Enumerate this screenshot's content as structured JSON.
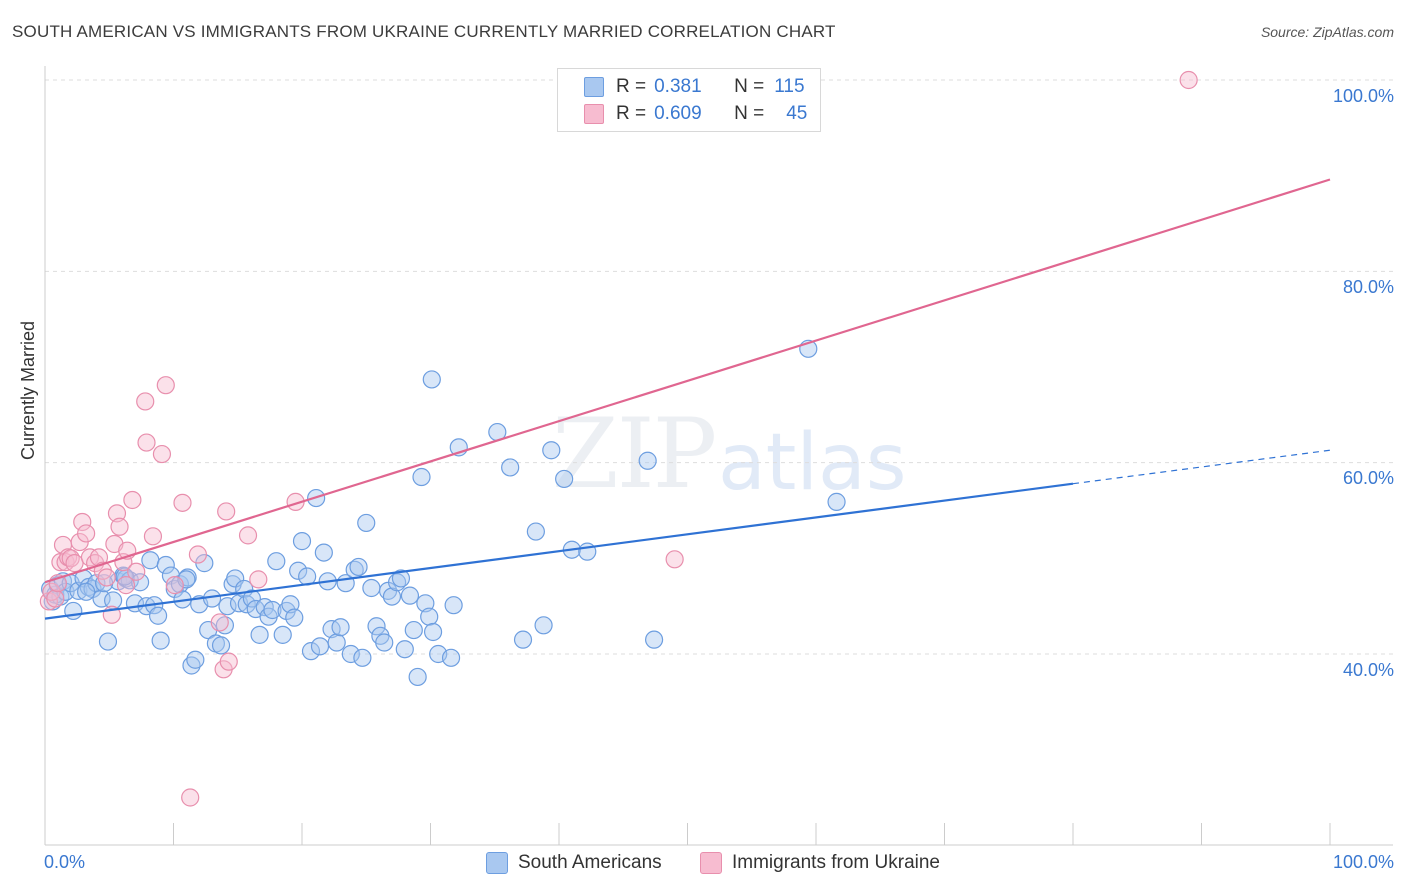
{
  "header": {
    "title": "SOUTH AMERICAN VS IMMIGRANTS FROM UKRAINE CURRENTLY MARRIED CORRELATION CHART",
    "source": "Source: ZipAtlas.com"
  },
  "watermark": {
    "part1": "ZIP",
    "part2": "atlas"
  },
  "colors": {
    "blue_fill": "#a9c8f0",
    "blue_stroke": "#6d9ee0",
    "blue_line": "#2f72d4",
    "pink_fill": "#f7bcd0",
    "pink_stroke": "#e88fad",
    "pink_line": "#e06690",
    "grid": "#dddddd",
    "axis_text": "#3a78d0"
  },
  "legend_top": {
    "rows": [
      {
        "r_label": "R =",
        "r_value": "0.381",
        "n_label": "N =",
        "n_value": "115"
      },
      {
        "r_label": "R =",
        "r_value": "0.609",
        "n_label": "N =",
        "n_value": "45"
      }
    ]
  },
  "legend_bottom": {
    "series1": "South Americans",
    "series2": "Immigrants from Ukraine"
  },
  "axes": {
    "x_min_label": "0.0%",
    "x_max_label": "100.0%",
    "y_label": "Currently Married",
    "y_ticks": [
      "40.0%",
      "60.0%",
      "80.0%",
      "100.0%"
    ]
  },
  "chart_data": {
    "type": "scatter",
    "title": "SOUTH AMERICAN VS IMMIGRANTS FROM UKRAINE CURRENTLY MARRIED CORRELATION CHART",
    "xlabel": "",
    "ylabel": "Currently Married",
    "xlim": [
      0,
      100
    ],
    "ylim": [
      20,
      100
    ],
    "y_ticks": [
      40,
      60,
      80,
      100
    ],
    "grid": true,
    "legend": "bottom-center",
    "series": [
      {
        "name": "South Americans",
        "R": 0.381,
        "N": 115,
        "trend": {
          "x0": 0,
          "y0": 43.7,
          "x1": 80,
          "y1": 57.8,
          "dashed_to_x": 100,
          "dashed_to_y": 61.3
        },
        "points": [
          [
            0.4,
            46.8
          ],
          [
            0.6,
            45.5
          ],
          [
            0.8,
            46.2
          ],
          [
            1.0,
            47.2
          ],
          [
            1.2,
            46.0
          ],
          [
            1.4,
            47.6
          ],
          [
            1.6,
            46.5
          ],
          [
            2.0,
            47.4
          ],
          [
            2.2,
            44.5
          ],
          [
            2.6,
            46.6
          ],
          [
            3.0,
            47.9
          ],
          [
            3.4,
            47.0
          ],
          [
            3.7,
            46.8
          ],
          [
            4.0,
            47.4
          ],
          [
            4.4,
            45.8
          ],
          [
            4.9,
            41.3
          ],
          [
            5.3,
            45.6
          ],
          [
            5.7,
            47.6
          ],
          [
            6.1,
            48.2
          ],
          [
            6.3,
            47.9
          ],
          [
            6.6,
            47.7
          ],
          [
            7.0,
            45.3
          ],
          [
            7.4,
            47.5
          ],
          [
            7.9,
            45.0
          ],
          [
            8.2,
            49.8
          ],
          [
            8.5,
            45.1
          ],
          [
            8.8,
            44.0
          ],
          [
            9.0,
            41.4
          ],
          [
            9.4,
            49.3
          ],
          [
            9.8,
            48.2
          ],
          [
            10.1,
            46.8
          ],
          [
            10.5,
            47.3
          ],
          [
            10.7,
            45.7
          ],
          [
            11.1,
            48.0
          ],
          [
            11.4,
            38.8
          ],
          [
            11.7,
            39.4
          ],
          [
            12.0,
            45.2
          ],
          [
            12.4,
            49.5
          ],
          [
            12.7,
            42.5
          ],
          [
            13.0,
            45.8
          ],
          [
            13.3,
            41.1
          ],
          [
            13.7,
            40.9
          ],
          [
            14.0,
            43.0
          ],
          [
            14.2,
            45.0
          ],
          [
            14.6,
            47.3
          ],
          [
            14.8,
            47.9
          ],
          [
            15.1,
            45.3
          ],
          [
            15.5,
            46.8
          ],
          [
            15.7,
            45.2
          ],
          [
            16.1,
            45.8
          ],
          [
            16.4,
            44.7
          ],
          [
            16.7,
            42.0
          ],
          [
            17.1,
            44.9
          ],
          [
            17.4,
            43.9
          ],
          [
            17.7,
            44.6
          ],
          [
            18.0,
            49.7
          ],
          [
            18.5,
            42.0
          ],
          [
            18.8,
            44.5
          ],
          [
            19.1,
            45.2
          ],
          [
            19.4,
            43.8
          ],
          [
            19.7,
            48.7
          ],
          [
            20.0,
            51.8
          ],
          [
            20.4,
            48.1
          ],
          [
            20.7,
            40.3
          ],
          [
            21.1,
            56.3
          ],
          [
            21.4,
            40.8
          ],
          [
            21.7,
            50.6
          ],
          [
            22.0,
            47.6
          ],
          [
            22.3,
            42.6
          ],
          [
            22.7,
            41.2
          ],
          [
            23.0,
            42.8
          ],
          [
            23.4,
            47.4
          ],
          [
            23.8,
            40.0
          ],
          [
            24.1,
            48.8
          ],
          [
            24.4,
            49.1
          ],
          [
            24.7,
            39.6
          ],
          [
            25.0,
            53.7
          ],
          [
            25.4,
            46.9
          ],
          [
            25.8,
            42.9
          ],
          [
            26.1,
            41.9
          ],
          [
            26.4,
            41.2
          ],
          [
            26.7,
            46.6
          ],
          [
            27.0,
            46.0
          ],
          [
            27.4,
            47.5
          ],
          [
            27.7,
            47.9
          ],
          [
            28.0,
            40.5
          ],
          [
            28.4,
            46.1
          ],
          [
            28.7,
            42.5
          ],
          [
            29.0,
            37.6
          ],
          [
            29.3,
            58.5
          ],
          [
            29.6,
            45.3
          ],
          [
            29.9,
            43.9
          ],
          [
            30.2,
            42.3
          ],
          [
            30.6,
            40.0
          ],
          [
            30.1,
            68.7
          ],
          [
            31.6,
            39.6
          ],
          [
            31.8,
            45.1
          ],
          [
            32.2,
            61.6
          ],
          [
            35.2,
            63.2
          ],
          [
            36.2,
            59.5
          ],
          [
            37.2,
            41.5
          ],
          [
            38.2,
            52.8
          ],
          [
            38.8,
            43.0
          ],
          [
            39.4,
            61.3
          ],
          [
            40.4,
            58.3
          ],
          [
            41.0,
            50.9
          ],
          [
            42.2,
            50.7
          ],
          [
            46.9,
            60.2
          ],
          [
            47.4,
            41.5
          ],
          [
            59.4,
            71.9
          ],
          [
            61.6,
            55.9
          ],
          [
            6.2,
            48.1
          ],
          [
            3.2,
            46.5
          ],
          [
            4.6,
            47.4
          ],
          [
            11.0,
            47.8
          ]
        ]
      },
      {
        "name": "Immigrants from Ukraine",
        "R": 0.609,
        "N": 45,
        "trend": {
          "x0": 0,
          "y0": 47.5,
          "x1": 100,
          "y1": 89.6
        },
        "points": [
          [
            0.3,
            45.5
          ],
          [
            0.5,
            46.5
          ],
          [
            0.8,
            45.8
          ],
          [
            1.0,
            47.4
          ],
          [
            1.2,
            49.6
          ],
          [
            1.4,
            51.4
          ],
          [
            1.6,
            49.6
          ],
          [
            1.8,
            50.1
          ],
          [
            2.0,
            50.0
          ],
          [
            2.3,
            49.5
          ],
          [
            2.7,
            51.7
          ],
          [
            2.9,
            53.8
          ],
          [
            3.2,
            52.6
          ],
          [
            3.5,
            50.1
          ],
          [
            3.9,
            49.5
          ],
          [
            4.2,
            50.1
          ],
          [
            4.5,
            48.7
          ],
          [
            4.8,
            48.0
          ],
          [
            5.2,
            44.1
          ],
          [
            5.4,
            51.5
          ],
          [
            5.6,
            54.7
          ],
          [
            5.8,
            53.3
          ],
          [
            6.1,
            49.6
          ],
          [
            6.4,
            50.8
          ],
          [
            6.8,
            56.1
          ],
          [
            7.1,
            48.6
          ],
          [
            7.8,
            66.4
          ],
          [
            7.9,
            62.1
          ],
          [
            8.4,
            52.3
          ],
          [
            9.1,
            60.9
          ],
          [
            9.4,
            68.1
          ],
          [
            10.1,
            47.2
          ],
          [
            10.7,
            55.8
          ],
          [
            11.3,
            25.0
          ],
          [
            11.9,
            50.4
          ],
          [
            13.6,
            43.3
          ],
          [
            13.9,
            38.4
          ],
          [
            14.1,
            54.9
          ],
          [
            14.3,
            39.2
          ],
          [
            15.8,
            52.4
          ],
          [
            16.6,
            47.8
          ],
          [
            19.5,
            55.9
          ],
          [
            49.0,
            49.9
          ],
          [
            89.0,
            100.0
          ],
          [
            6.3,
            47.2
          ]
        ]
      }
    ]
  }
}
